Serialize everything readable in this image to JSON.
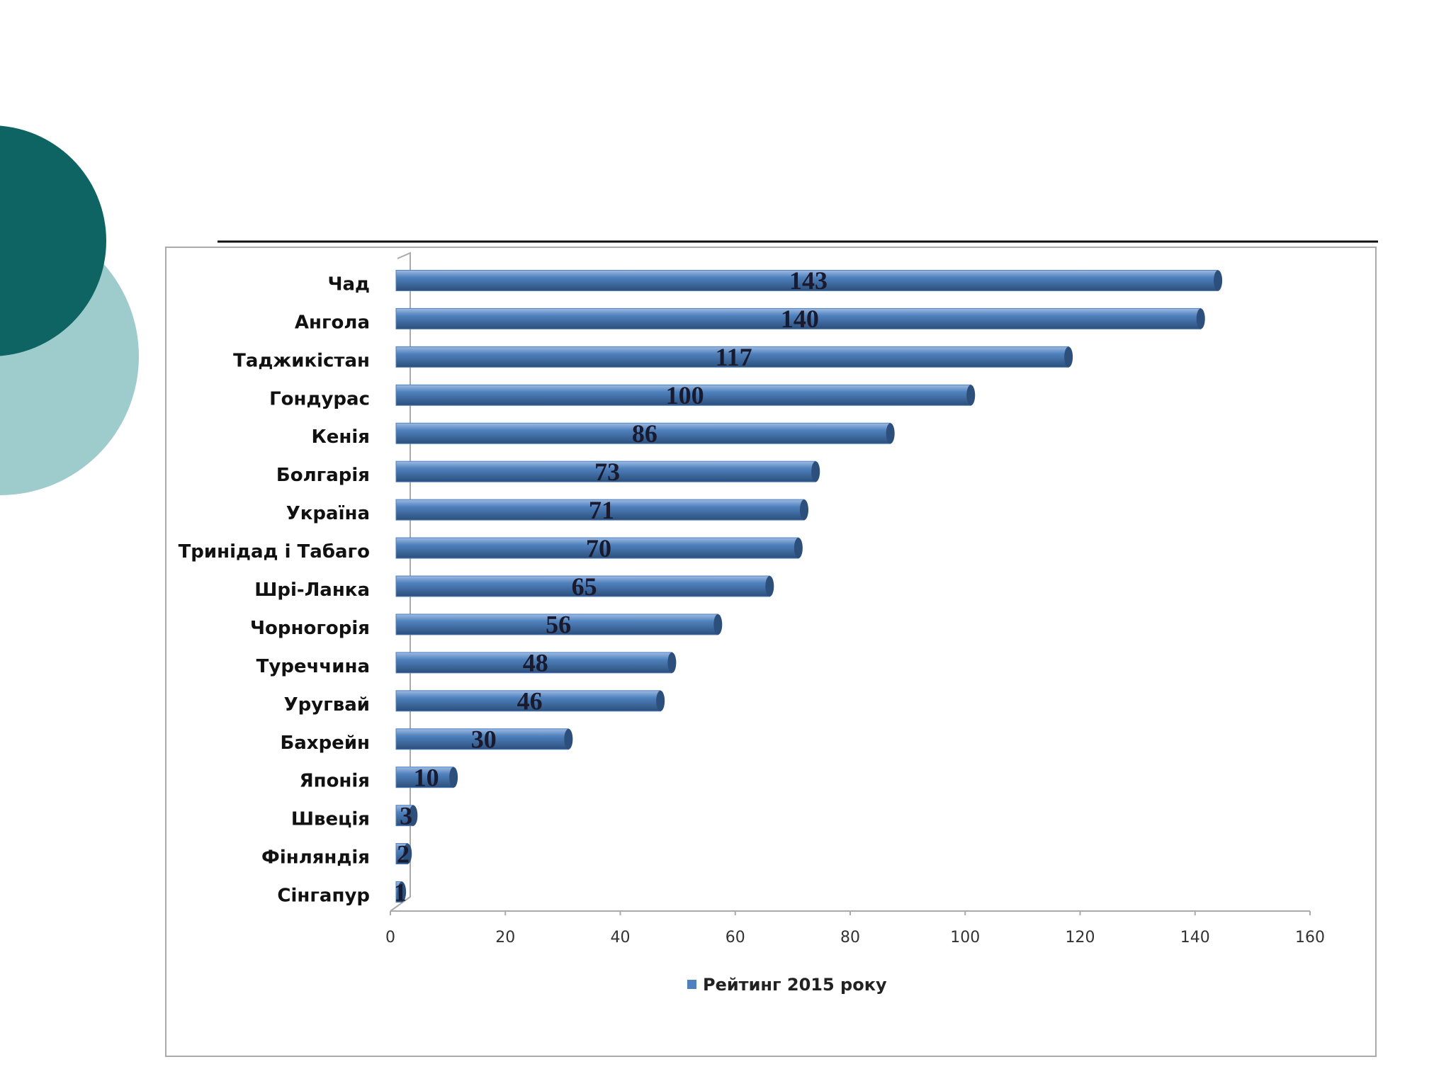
{
  "chart_data": {
    "type": "bar",
    "orientation": "horizontal",
    "categories": [
      "Чад",
      "Ангола",
      "Таджикістан",
      "Гондурас",
      "Кенія",
      "Болгарія",
      "Україна",
      "Тринідад і Табаго",
      "Шрі-Ланка",
      "Чорногорія",
      "Туреччина",
      "Уругвай",
      "Бахрейн",
      "Японія",
      "Швеція",
      "Фінляндія",
      "Сінгапур"
    ],
    "series": [
      {
        "name": "Рейтинг 2015 року",
        "color": "#4f81bd",
        "values": [
          143,
          140,
          117,
          100,
          86,
          73,
          71,
          70,
          65,
          56,
          48,
          46,
          30,
          10,
          3,
          2,
          1
        ]
      }
    ],
    "xlim": [
      0,
      160
    ],
    "xticks": [
      0,
      20,
      40,
      60,
      80,
      100,
      120,
      140,
      160
    ],
    "legend": "bottom",
    "grid": false
  }
}
